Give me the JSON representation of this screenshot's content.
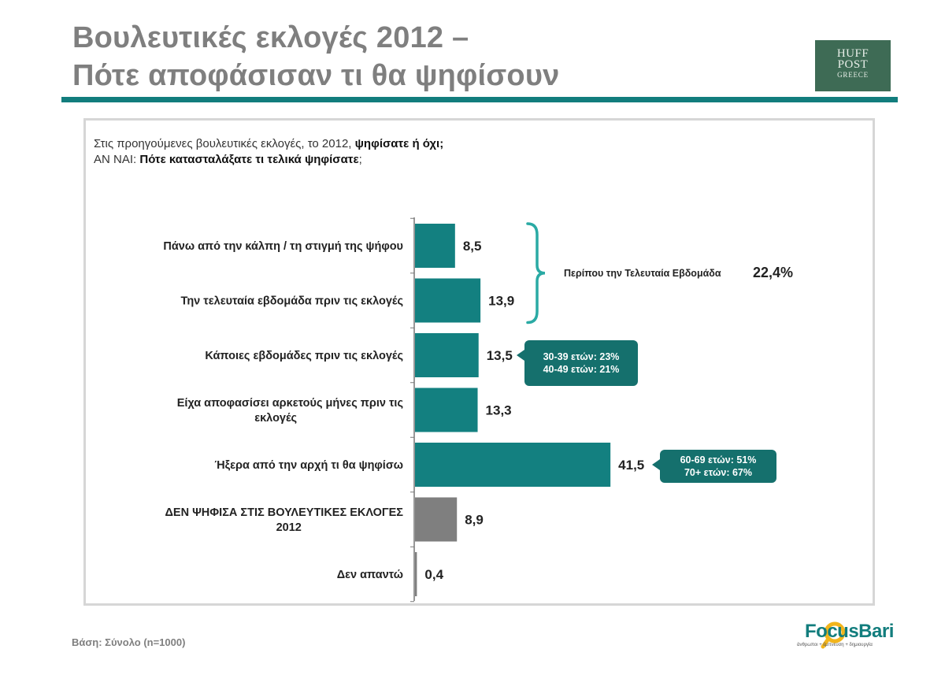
{
  "header": {
    "title_line1": "Βουλευτικές εκλογές 2012 –",
    "title_line2": "Πότε αποφάσισαν τι θα ψηφίσουν"
  },
  "logo": {
    "line1": "HUFF",
    "line2": "POST",
    "line3": "GREECE"
  },
  "question": {
    "line1_plain": "Στις προηγούμενες βουλευτικές εκλογές, το 2012, ",
    "line1_bold": "ψηφίσατε ή όχι;",
    "line2_plain": "ΑΝ ΝΑΙ: ",
    "line2_bold": "Πότε κατασταλάξατε τι τελικά ψηφίσατε",
    "line2_end": ";"
  },
  "chart_data": {
    "type": "bar",
    "orientation": "horizontal",
    "xlim": [
      0,
      45
    ],
    "grid": false,
    "categories": [
      [
        "Πάνω από την κάλπη / τη στιγμή της ψήφου"
      ],
      [
        "Την τελευταία εβδομάδα πριν τις εκλογές"
      ],
      [
        "Κάποιες εβδομάδες πριν τις εκλογές"
      ],
      [
        "Είχα αποφασίσει αρκετούς μήνες πριν τις",
        "εκλογές"
      ],
      [
        "Ήξερα από την αρχή τι θα ψηφίσω"
      ],
      [
        "ΔΕΝ ΨΗΦΙΣΑ ΣΤΙΣ ΒΟΥΛΕΥΤΙΚΕΣ ΕΚΛΟΓΕΣ",
        "2012"
      ],
      [
        "Δεν απαντώ"
      ]
    ],
    "values": [
      8.5,
      13.9,
      13.5,
      13.3,
      41.5,
      8.9,
      0.4
    ],
    "value_labels": [
      "8,5",
      "13,9",
      "13,5",
      "13,3",
      "41,5",
      "8,9",
      "0,4"
    ],
    "colors": [
      "#138080",
      "#138080",
      "#138080",
      "#138080",
      "#138080",
      "#7f7f7f",
      "#7f7f7f"
    ],
    "bracket": {
      "spans": [
        0,
        1
      ],
      "label": "Περίπου την Τελευταία Εβδομάδα",
      "value": "22,4%"
    },
    "callouts": [
      {
        "bar": 2,
        "lines": [
          "30-39 ετών: 23%",
          "40-49 ετών: 21%"
        ]
      },
      {
        "bar": 4,
        "lines": [
          "60-69 ετών: 51%",
          "70+ ετών: 67%"
        ]
      }
    ]
  },
  "footer": {
    "base_note": "Βάση: Σύνολο (n=1000)",
    "brand_name": "FocusBari",
    "brand_tagline": "άνθρωποι + έμπνευση + δημιουργία"
  }
}
